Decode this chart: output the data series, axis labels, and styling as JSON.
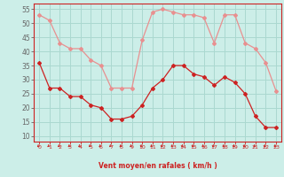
{
  "xlabel": "Vent moyen/en rafales ( km/h )",
  "bg_color": "#cceee8",
  "grid_color": "#aad8d0",
  "line_mean_color": "#cc2222",
  "line_gust_color": "#e89090",
  "x": [
    0,
    1,
    2,
    3,
    4,
    5,
    6,
    7,
    8,
    9,
    10,
    11,
    12,
    13,
    14,
    15,
    16,
    17,
    18,
    19,
    20,
    21,
    22,
    23
  ],
  "y_mean": [
    36,
    27,
    27,
    24,
    24,
    21,
    20,
    16,
    16,
    17,
    21,
    27,
    30,
    35,
    35,
    32,
    31,
    28,
    31,
    29,
    25,
    17,
    13,
    13
  ],
  "y_gust": [
    53,
    51,
    43,
    41,
    41,
    37,
    35,
    27,
    27,
    27,
    44,
    54,
    55,
    54,
    53,
    53,
    52,
    43,
    53,
    53,
    43,
    41,
    36,
    26
  ],
  "ylim_min": 8,
  "ylim_max": 57,
  "yticks": [
    10,
    15,
    20,
    25,
    30,
    35,
    40,
    45,
    50,
    55
  ],
  "xlim_min": -0.5,
  "xlim_max": 23.5,
  "arrow_color": "#cc2222",
  "xlabel_color": "#cc2222",
  "tick_color": "#cc2222",
  "spine_color": "#cc2222"
}
